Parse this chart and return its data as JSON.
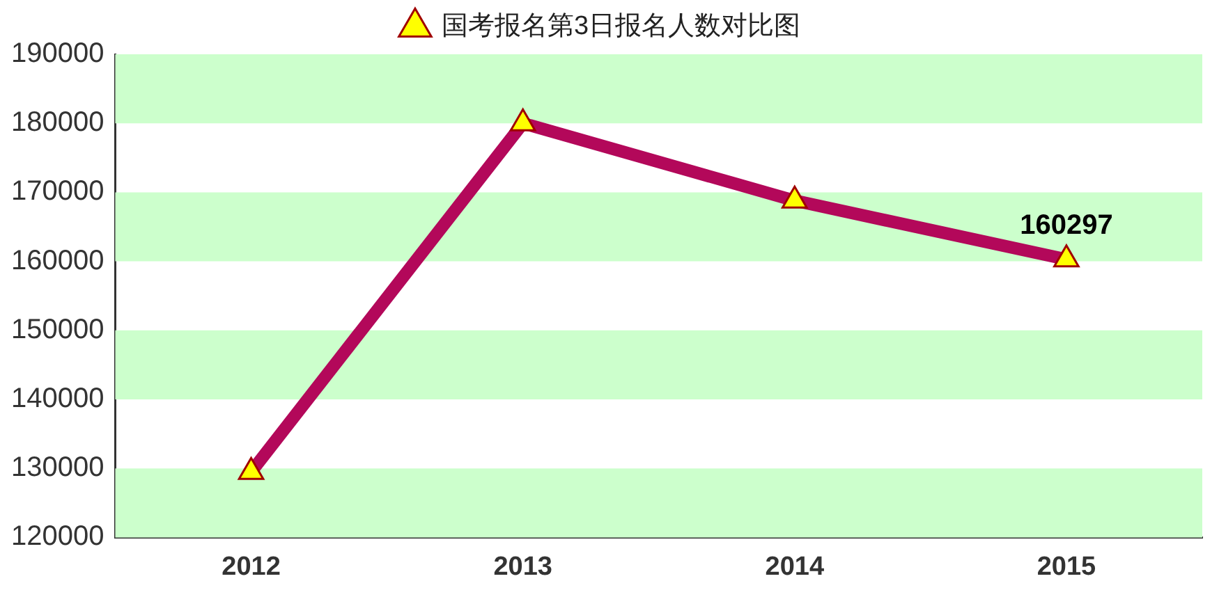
{
  "chart_data": {
    "type": "line",
    "categories": [
      "2012",
      "2013",
      "2014",
      "2015"
    ],
    "series": [
      {
        "name": "国考报名第3日报名人数对比图",
        "color": "#b3085a",
        "values": [
          129500,
          180000,
          168800,
          160297
        ],
        "value_labels": [
          null,
          null,
          null,
          "160297"
        ]
      }
    ],
    "ylim": [
      120000,
      190000
    ],
    "yticks": [
      120000,
      130000,
      140000,
      150000,
      160000,
      170000,
      180000,
      190000
    ],
    "bands": [
      {
        "axis": "y",
        "from": 120000,
        "to": 130000,
        "color": "#ccffcc"
      },
      {
        "axis": "y",
        "from": 140000,
        "to": 150000,
        "color": "#ccffcc"
      },
      {
        "axis": "y",
        "from": 160000,
        "to": 170000,
        "color": "#ccffcc"
      },
      {
        "axis": "y",
        "from": 180000,
        "to": 190000,
        "color": "#ccffcc"
      }
    ],
    "grid": false,
    "legend": "top",
    "marker": "triangle",
    "line_style": "solid"
  }
}
